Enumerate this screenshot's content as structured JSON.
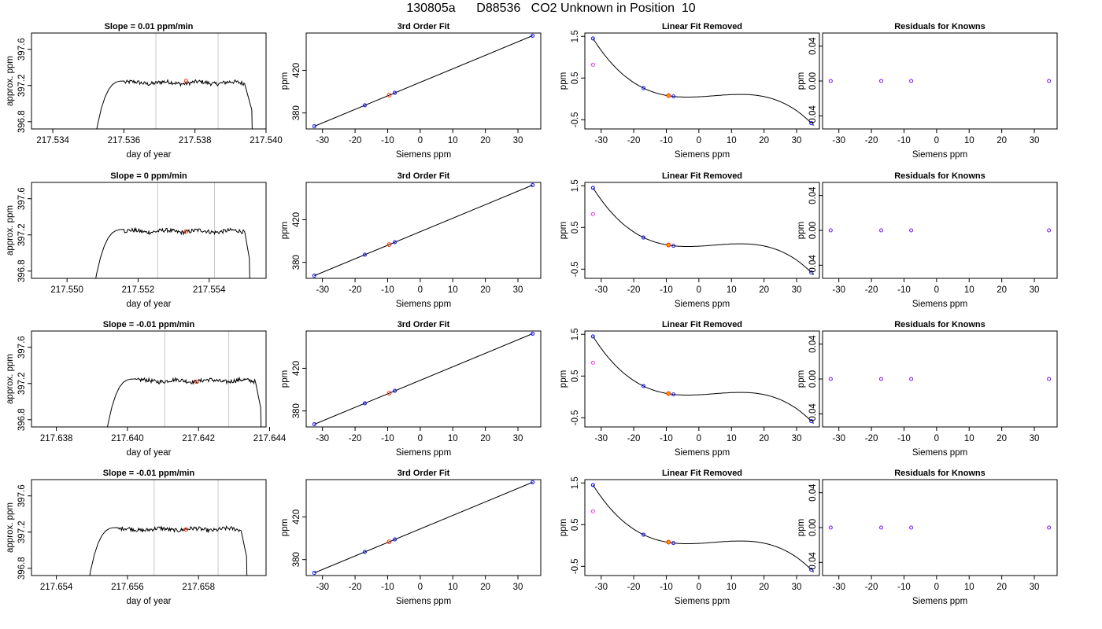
{
  "title": "130805a      D88536   CO2 Unknown in Position  10",
  "colors": {
    "line": "#000000",
    "guide": "#c8c8c8",
    "known": "#1a1aff",
    "sample": "#ff2a00",
    "sample_fill": "#ff9900",
    "excluded": "#ff33ff",
    "residual": "#7a1aff"
  },
  "chart_data": [
    {
      "type": "line",
      "title": "Slope =  0.01  ppm/min",
      "xlabel": "day of year",
      "ylabel": "approx. ppm",
      "xlim": [
        217.5334,
        217.54
      ],
      "ylim": [
        396.72,
        397.78
      ],
      "x_ticks": [
        "217.534",
        "217.536",
        "217.538",
        "217.540"
      ],
      "x_tick_values": [
        217.534,
        217.536,
        217.538,
        217.54
      ],
      "y_ticks": [
        "396.8",
        "397.2",
        "397.6"
      ],
      "y_tick_values": [
        396.8,
        397.2,
        397.6
      ],
      "vlines": [
        217.5369,
        217.53865
      ],
      "segment": {
        "start": 217.53515,
        "rise_end": 217.536,
        "plateau_end": 217.5394,
        "end": 217.5396,
        "level": 397.23
      },
      "marker": {
        "x": 217.53775,
        "y": 397.25
      }
    },
    {
      "type": "scatter",
      "title": "3rd Order Fit",
      "xlabel": "Siemens ppm",
      "ylabel": "ppm",
      "xlim": [
        -35,
        37
      ],
      "ylim": [
        365,
        455
      ],
      "x_ticks": [
        "-30",
        "-20",
        "-10",
        "0",
        "10",
        "20",
        "30"
      ],
      "x_tick_values": [
        -30,
        -20,
        -10,
        0,
        10,
        20,
        30
      ],
      "y_ticks": [
        "380",
        "420"
      ],
      "y_tick_values": [
        380,
        420
      ],
      "fit_line": [
        [
          -32.5,
          367.5
        ],
        [
          34.5,
          452.5
        ]
      ],
      "knowns": [
        [
          -32.5,
          367.5
        ],
        [
          -17,
          387.2
        ],
        [
          -7.8,
          398.9
        ],
        [
          34.5,
          452.5
        ]
      ],
      "unknown": [
        -9.5,
        396.7
      ]
    },
    {
      "type": "line",
      "title": "Linear Fit Removed",
      "xlabel": "Siemens ppm",
      "ylabel": "ppm",
      "xlim": [
        -35,
        37
      ],
      "ylim": [
        -0.72,
        1.58
      ],
      "x_ticks": [
        "-30",
        "-20",
        "-10",
        "0",
        "10",
        "20",
        "30"
      ],
      "x_tick_values": [
        -30,
        -20,
        -10,
        0,
        10,
        20,
        30
      ],
      "y_ticks": [
        "-0.5",
        "0.5",
        "1.5"
      ],
      "y_tick_values": [
        -0.5,
        0.5,
        1.5
      ],
      "knowns": [
        [
          -32.5,
          1.45
        ],
        [
          -17,
          0.26
        ],
        [
          -7.8,
          0.06
        ],
        [
          34.5,
          -0.58
        ]
      ],
      "unknown": [
        -9.3,
        0.08
      ],
      "excluded": [
        [
          -32.5,
          0.82
        ]
      ]
    },
    {
      "type": "scatter",
      "title": "Residuals for Knowns",
      "xlabel": "Siemens ppm",
      "ylabel": "ppm",
      "xlim": [
        -35,
        37
      ],
      "ylim": [
        -0.055,
        0.055
      ],
      "x_ticks": [
        "-30",
        "-20",
        "-10",
        "0",
        "10",
        "20",
        "30"
      ],
      "x_tick_values": [
        -30,
        -20,
        -10,
        0,
        10,
        20,
        30
      ],
      "y_ticks": [
        "-0.04",
        "0.00",
        "0.04"
      ],
      "y_tick_values": [
        -0.04,
        0.0,
        0.04
      ],
      "residuals": [
        [
          -32.5,
          0
        ],
        [
          -17,
          0
        ],
        [
          -7.8,
          0
        ],
        [
          34.5,
          0
        ]
      ]
    },
    {
      "type": "line",
      "title": "Slope =  0  ppm/min",
      "xlabel": "day of year",
      "ylabel": "approx. ppm",
      "xlim": [
        217.549,
        217.5556
      ],
      "ylim": [
        396.72,
        397.78
      ],
      "x_ticks": [
        "217.550",
        "217.552",
        "217.554"
      ],
      "x_tick_values": [
        217.55,
        217.552,
        217.554
      ],
      "y_ticks": [
        "396.8",
        "397.2",
        "397.6"
      ],
      "y_tick_values": [
        396.8,
        397.2,
        397.6
      ],
      "vlines": [
        217.55255,
        217.55415
      ],
      "segment": {
        "start": 217.55072,
        "rise_end": 217.5516,
        "plateau_end": 217.555,
        "end": 217.55513,
        "level": 397.24
      },
      "marker": {
        "x": 217.55335,
        "y": 397.24
      }
    },
    {
      "type": "scatter",
      "title": "3rd Order Fit",
      "xlabel": "Siemens ppm",
      "ylabel": "ppm",
      "xlim": [
        -35,
        37
      ],
      "ylim": [
        365,
        455
      ],
      "x_ticks": [
        "-30",
        "-20",
        "-10",
        "0",
        "10",
        "20",
        "30"
      ],
      "x_tick_values": [
        -30,
        -20,
        -10,
        0,
        10,
        20,
        30
      ],
      "y_ticks": [
        "380",
        "420"
      ],
      "y_tick_values": [
        380,
        420
      ],
      "fit_line": [
        [
          -32.5,
          367.5
        ],
        [
          34.5,
          452.5
        ]
      ],
      "knowns": [
        [
          -32.5,
          367.5
        ],
        [
          -17,
          387.2
        ],
        [
          -7.8,
          398.9
        ],
        [
          34.5,
          452.5
        ]
      ],
      "unknown": [
        -9.5,
        396.7
      ]
    },
    {
      "type": "line",
      "title": "Linear Fit Removed",
      "xlabel": "Siemens ppm",
      "ylabel": "ppm",
      "xlim": [
        -35,
        37
      ],
      "ylim": [
        -0.72,
        1.58
      ],
      "x_ticks": [
        "-30",
        "-20",
        "-10",
        "0",
        "10",
        "20",
        "30"
      ],
      "x_tick_values": [
        -30,
        -20,
        -10,
        0,
        10,
        20,
        30
      ],
      "y_ticks": [
        "-0.5",
        "0.5",
        "1.5"
      ],
      "y_tick_values": [
        -0.5,
        0.5,
        1.5
      ],
      "knowns": [
        [
          -32.5,
          1.45
        ],
        [
          -17,
          0.26
        ],
        [
          -7.8,
          0.06
        ],
        [
          34.5,
          -0.58
        ]
      ],
      "unknown": [
        -9.3,
        0.08
      ],
      "excluded": [
        [
          -32.5,
          0.82
        ]
      ]
    },
    {
      "type": "scatter",
      "title": "Residuals for Knowns",
      "xlabel": "Siemens ppm",
      "ylabel": "ppm",
      "xlim": [
        -35,
        37
      ],
      "ylim": [
        -0.055,
        0.055
      ],
      "x_ticks": [
        "-30",
        "-20",
        "-10",
        "0",
        "10",
        "20",
        "30"
      ],
      "x_tick_values": [
        -30,
        -20,
        -10,
        0,
        10,
        20,
        30
      ],
      "y_ticks": [
        "-0.04",
        "0.00",
        "0.04"
      ],
      "y_tick_values": [
        -0.04,
        0.0,
        0.04
      ],
      "residuals": [
        [
          -32.5,
          0
        ],
        [
          -17,
          0
        ],
        [
          -7.8,
          0
        ],
        [
          34.5,
          0
        ]
      ]
    },
    {
      "type": "line",
      "title": "Slope =  -0.01  ppm/min",
      "xlabel": "day of year",
      "ylabel": "approx. ppm",
      "xlim": [
        217.6373,
        217.6439
      ],
      "ylim": [
        396.72,
        397.78
      ],
      "x_ticks": [
        "217.638",
        "217.640",
        "217.642",
        "217.644"
      ],
      "x_tick_values": [
        217.638,
        217.64,
        217.642,
        217.644
      ],
      "y_ticks": [
        "396.8",
        "397.2",
        "397.6"
      ],
      "y_tick_values": [
        396.8,
        397.2,
        397.6
      ],
      "vlines": [
        217.64105,
        217.64285
      ],
      "segment": {
        "start": 217.63935,
        "rise_end": 217.6402,
        "plateau_end": 217.6436,
        "end": 217.64375,
        "level": 397.23
      },
      "marker": {
        "x": 217.64195,
        "y": 397.22
      }
    },
    {
      "type": "scatter",
      "title": "3rd Order Fit",
      "xlabel": "Siemens ppm",
      "ylabel": "ppm",
      "xlim": [
        -35,
        37
      ],
      "ylim": [
        365,
        455
      ],
      "x_ticks": [
        "-30",
        "-20",
        "-10",
        "0",
        "10",
        "20",
        "30"
      ],
      "x_tick_values": [
        -30,
        -20,
        -10,
        0,
        10,
        20,
        30
      ],
      "y_ticks": [
        "380",
        "420"
      ],
      "y_tick_values": [
        380,
        420
      ],
      "fit_line": [
        [
          -32.5,
          367.5
        ],
        [
          34.5,
          452.5
        ]
      ],
      "knowns": [
        [
          -32.5,
          367.5
        ],
        [
          -17,
          387.2
        ],
        [
          -7.8,
          398.9
        ],
        [
          34.5,
          452.5
        ]
      ],
      "unknown": [
        -9.5,
        396.7
      ]
    },
    {
      "type": "line",
      "title": "Linear Fit Removed",
      "xlabel": "Siemens ppm",
      "ylabel": "ppm",
      "xlim": [
        -35,
        37
      ],
      "ylim": [
        -0.72,
        1.58
      ],
      "x_ticks": [
        "-30",
        "-20",
        "-10",
        "0",
        "10",
        "20",
        "30"
      ],
      "x_tick_values": [
        -30,
        -20,
        -10,
        0,
        10,
        20,
        30
      ],
      "y_ticks": [
        "-0.5",
        "0.5",
        "1.5"
      ],
      "y_tick_values": [
        -0.5,
        0.5,
        1.5
      ],
      "knowns": [
        [
          -32.5,
          1.45
        ],
        [
          -17,
          0.26
        ],
        [
          -7.8,
          0.06
        ],
        [
          34.5,
          -0.58
        ]
      ],
      "unknown": [
        -9.3,
        0.08
      ],
      "excluded": [
        [
          -32.5,
          0.82
        ]
      ]
    },
    {
      "type": "scatter",
      "title": "Residuals for Knowns",
      "xlabel": "Siemens ppm",
      "ylabel": "ppm",
      "xlim": [
        -35,
        37
      ],
      "ylim": [
        -0.055,
        0.055
      ],
      "x_ticks": [
        "-30",
        "-20",
        "-10",
        "0",
        "10",
        "20",
        "30"
      ],
      "x_tick_values": [
        -30,
        -20,
        -10,
        0,
        10,
        20,
        30
      ],
      "y_ticks": [
        "-0.04",
        "0.00",
        "0.04"
      ],
      "y_tick_values": [
        -0.04,
        0.0,
        0.04
      ],
      "residuals": [
        [
          -32.5,
          0
        ],
        [
          -17,
          0
        ],
        [
          -7.8,
          0
        ],
        [
          34.5,
          0
        ]
      ]
    },
    {
      "type": "line",
      "title": "Slope =  -0.01  ppm/min",
      "xlabel": "day of year",
      "ylabel": "approx. ppm",
      "xlim": [
        217.6533,
        217.6599
      ],
      "ylim": [
        396.72,
        397.78
      ],
      "x_ticks": [
        "217.654",
        "217.656",
        "217.658"
      ],
      "x_tick_values": [
        217.654,
        217.656,
        217.658
      ],
      "y_ticks": [
        "396.8",
        "397.2",
        "397.6"
      ],
      "y_tick_values": [
        396.8,
        397.2,
        397.6
      ],
      "vlines": [
        217.65675,
        217.65855
      ],
      "segment": {
        "start": 217.65485,
        "rise_end": 217.6557,
        "plateau_end": 217.6592,
        "end": 217.65935,
        "level": 397.23
      },
      "marker": {
        "x": 217.65765,
        "y": 397.23
      }
    },
    {
      "type": "scatter",
      "title": "3rd Order Fit",
      "xlabel": "Siemens ppm",
      "ylabel": "ppm",
      "xlim": [
        -35,
        37
      ],
      "ylim": [
        365,
        455
      ],
      "x_ticks": [
        "-30",
        "-20",
        "-10",
        "0",
        "10",
        "20",
        "30"
      ],
      "x_tick_values": [
        -30,
        -20,
        -10,
        0,
        10,
        20,
        30
      ],
      "y_ticks": [
        "380",
        "420"
      ],
      "y_tick_values": [
        380,
        420
      ],
      "fit_line": [
        [
          -32.5,
          367.5
        ],
        [
          34.5,
          452.5
        ]
      ],
      "knowns": [
        [
          -32.5,
          367.5
        ],
        [
          -17,
          387.2
        ],
        [
          -7.8,
          398.9
        ],
        [
          34.5,
          452.5
        ]
      ],
      "unknown": [
        -9.5,
        396.7
      ]
    },
    {
      "type": "line",
      "title": "Linear Fit Removed",
      "xlabel": "Siemens ppm",
      "ylabel": "ppm",
      "xlim": [
        -35,
        37
      ],
      "ylim": [
        -0.72,
        1.58
      ],
      "x_ticks": [
        "-30",
        "-20",
        "-10",
        "0",
        "10",
        "20",
        "30"
      ],
      "x_tick_values": [
        -30,
        -20,
        -10,
        0,
        10,
        20,
        30
      ],
      "y_ticks": [
        "-0.5",
        "0.5",
        "1.5"
      ],
      "y_tick_values": [
        -0.5,
        0.5,
        1.5
      ],
      "knowns": [
        [
          -32.5,
          1.45
        ],
        [
          -17,
          0.26
        ],
        [
          -7.8,
          0.06
        ],
        [
          34.5,
          -0.58
        ]
      ],
      "unknown": [
        -9.3,
        0.08
      ],
      "excluded": [
        [
          -32.5,
          0.82
        ]
      ]
    },
    {
      "type": "scatter",
      "title": "Residuals for Knowns",
      "xlabel": "Siemens ppm",
      "ylabel": "ppm",
      "xlim": [
        -35,
        37
      ],
      "ylim": [
        -0.055,
        0.055
      ],
      "x_ticks": [
        "-30",
        "-20",
        "-10",
        "0",
        "10",
        "20",
        "30"
      ],
      "x_tick_values": [
        -30,
        -20,
        -10,
        0,
        10,
        20,
        30
      ],
      "y_ticks": [
        "-0.04",
        "0.00",
        "0.04"
      ],
      "y_tick_values": [
        -0.04,
        0.0,
        0.04
      ],
      "residuals": [
        [
          -32.5,
          0
        ],
        [
          -17,
          0
        ],
        [
          -7.8,
          0
        ],
        [
          34.5,
          0
        ]
      ]
    }
  ]
}
